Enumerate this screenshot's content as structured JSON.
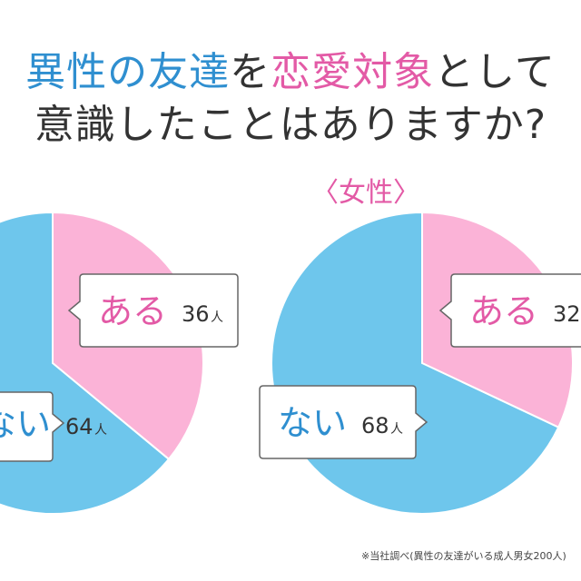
{
  "title": {
    "line1_parts": [
      {
        "text": "異性の友達",
        "color": "#2f8fd0"
      },
      {
        "text": "を",
        "color": "#333333"
      },
      {
        "text": "恋愛対象",
        "color": "#e35aa6"
      },
      {
        "text": "として",
        "color": "#333333"
      }
    ],
    "line2": "意識したことはありますか?"
  },
  "colors": {
    "yes": "#fbb3d7",
    "no": "#6ec6ec",
    "yes_text": "#e35aa6",
    "no_text": "#2f8fd0",
    "slice_border": "#ffffff",
    "callout_border": "#666666"
  },
  "chart_data": [
    {
      "type": "pie",
      "title": "",
      "unit": "人",
      "slices": [
        {
          "label": "ある",
          "value": 36
        },
        {
          "label": "ない",
          "value": 64
        }
      ]
    },
    {
      "type": "pie",
      "title": "〈女性〉",
      "unit": "人",
      "slices": [
        {
          "label": "ある",
          "value": 32
        },
        {
          "label": "ない",
          "value": 68
        }
      ]
    }
  ],
  "footnote": "※当社調べ(異性の友達がいる成人男女200人)"
}
